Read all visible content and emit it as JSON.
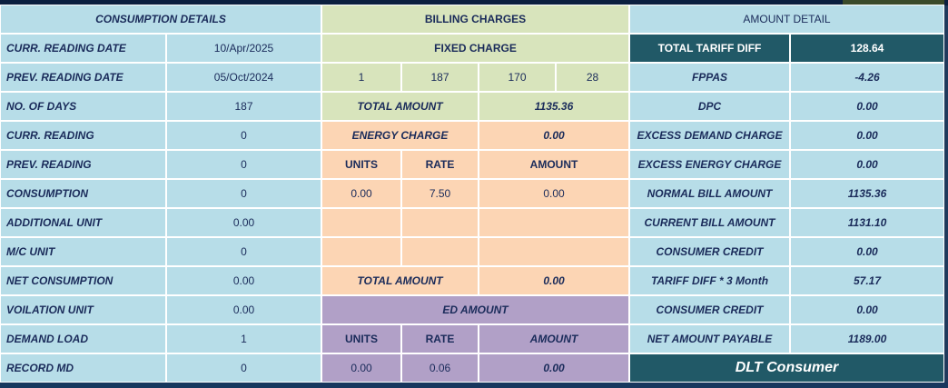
{
  "consumption": {
    "header": "CONSUMPTION DETAILS",
    "rows": [
      {
        "label": "CURR. READING DATE",
        "value": "10/Apr/2025"
      },
      {
        "label": "PREV. READING DATE",
        "value": "05/Oct/2024"
      },
      {
        "label": "NO. OF DAYS",
        "value": "187"
      },
      {
        "label": "CURR. READING",
        "value": "0"
      },
      {
        "label": "PREV. READING",
        "value": "0"
      },
      {
        "label": "CONSUMPTION",
        "value": "0"
      },
      {
        "label": "ADDITIONAL UNIT",
        "value": "0.00"
      },
      {
        "label": "M/C UNIT",
        "value": "0"
      },
      {
        "label": "NET CONSUMPTION",
        "value": "0.00"
      },
      {
        "label": "VOILATION UNIT",
        "value": "0.00"
      },
      {
        "label": "DEMAND LOAD",
        "value": "1"
      },
      {
        "label": "RECORD MD",
        "value": "0"
      }
    ]
  },
  "billing": {
    "header": "BILLING CHARGES",
    "fixed_charge_label": "FIXED CHARGE",
    "fixed_values": [
      "1",
      "187",
      "170",
      "28"
    ],
    "fixed_total_label": "TOTAL AMOUNT",
    "fixed_total_value": "1135.36",
    "energy_charge_label": "ENERGY CHARGE",
    "energy_charge_value": "0.00",
    "energy_headers": {
      "units": "UNITS",
      "rate": "RATE",
      "amount": "AMOUNT"
    },
    "energy_row": {
      "units": "0.00",
      "rate": "7.50",
      "amount": "0.00"
    },
    "energy_total_label": "TOTAL AMOUNT",
    "energy_total_value": "0.00",
    "ed_label": "ED AMOUNT",
    "ed_headers": {
      "units": "UNITS",
      "rate": "RATE",
      "amount": "AMOUNT"
    },
    "ed_row": {
      "units": "0.00",
      "rate": "0.06",
      "amount": "0.00"
    }
  },
  "amount": {
    "header": "AMOUNT DETAIL",
    "rows": [
      {
        "label": "TOTAL TARIFF DIFF",
        "value": "128.64"
      },
      {
        "label": "FPPAS",
        "value": "-4.26"
      },
      {
        "label": "DPC",
        "value": "0.00"
      },
      {
        "label": "EXCESS DEMAND CHARGE",
        "value": "0.00"
      },
      {
        "label": "EXCESS ENERGY CHARGE",
        "value": "0.00"
      },
      {
        "label": "NORMAL BILL AMOUNT",
        "value": "1135.36"
      },
      {
        "label": "CURRENT BILL AMOUNT",
        "value": "1131.10"
      },
      {
        "label": "CONSUMER CREDIT",
        "value": "0.00"
      },
      {
        "label": "TARIFF DIFF * 3 Month",
        "value": "57.17"
      },
      {
        "label": "CONSUMER CREDIT",
        "value": "0.00"
      },
      {
        "label": "NET AMOUNT PAYABLE",
        "value": "1189.00"
      }
    ],
    "footer": "DLT Consumer"
  },
  "colors": {
    "light_blue": "#b7dde8",
    "light_green": "#d8e4bc",
    "peach": "#fcd5b4",
    "lavender": "#b1a0c7",
    "dark_teal": "#215967",
    "text_navy": "#1a2b5a"
  }
}
